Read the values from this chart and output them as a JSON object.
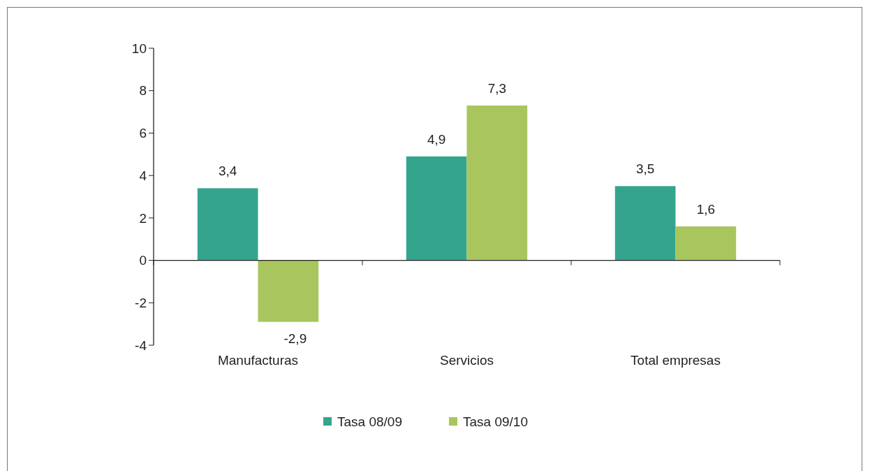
{
  "chart_data": {
    "type": "bar",
    "categories": [
      "Manufacturas",
      "Servicios",
      "Total empresas"
    ],
    "series": [
      {
        "name": "Tasa 08/09",
        "color": "#34a58c",
        "values": [
          3.4,
          4.9,
          3.5
        ],
        "value_labels": [
          "3,4",
          "4,9",
          "3,5"
        ]
      },
      {
        "name": "Tasa 09/10",
        "color": "#a9c55e",
        "values": [
          -2.9,
          7.3,
          1.6
        ],
        "value_labels": [
          "-2,9",
          "7,3",
          "1,6"
        ]
      }
    ],
    "ylim": [
      -4,
      10
    ],
    "yticks": [
      -4,
      -2,
      0,
      2,
      4,
      6,
      8,
      10
    ],
    "legend": "bottom"
  }
}
